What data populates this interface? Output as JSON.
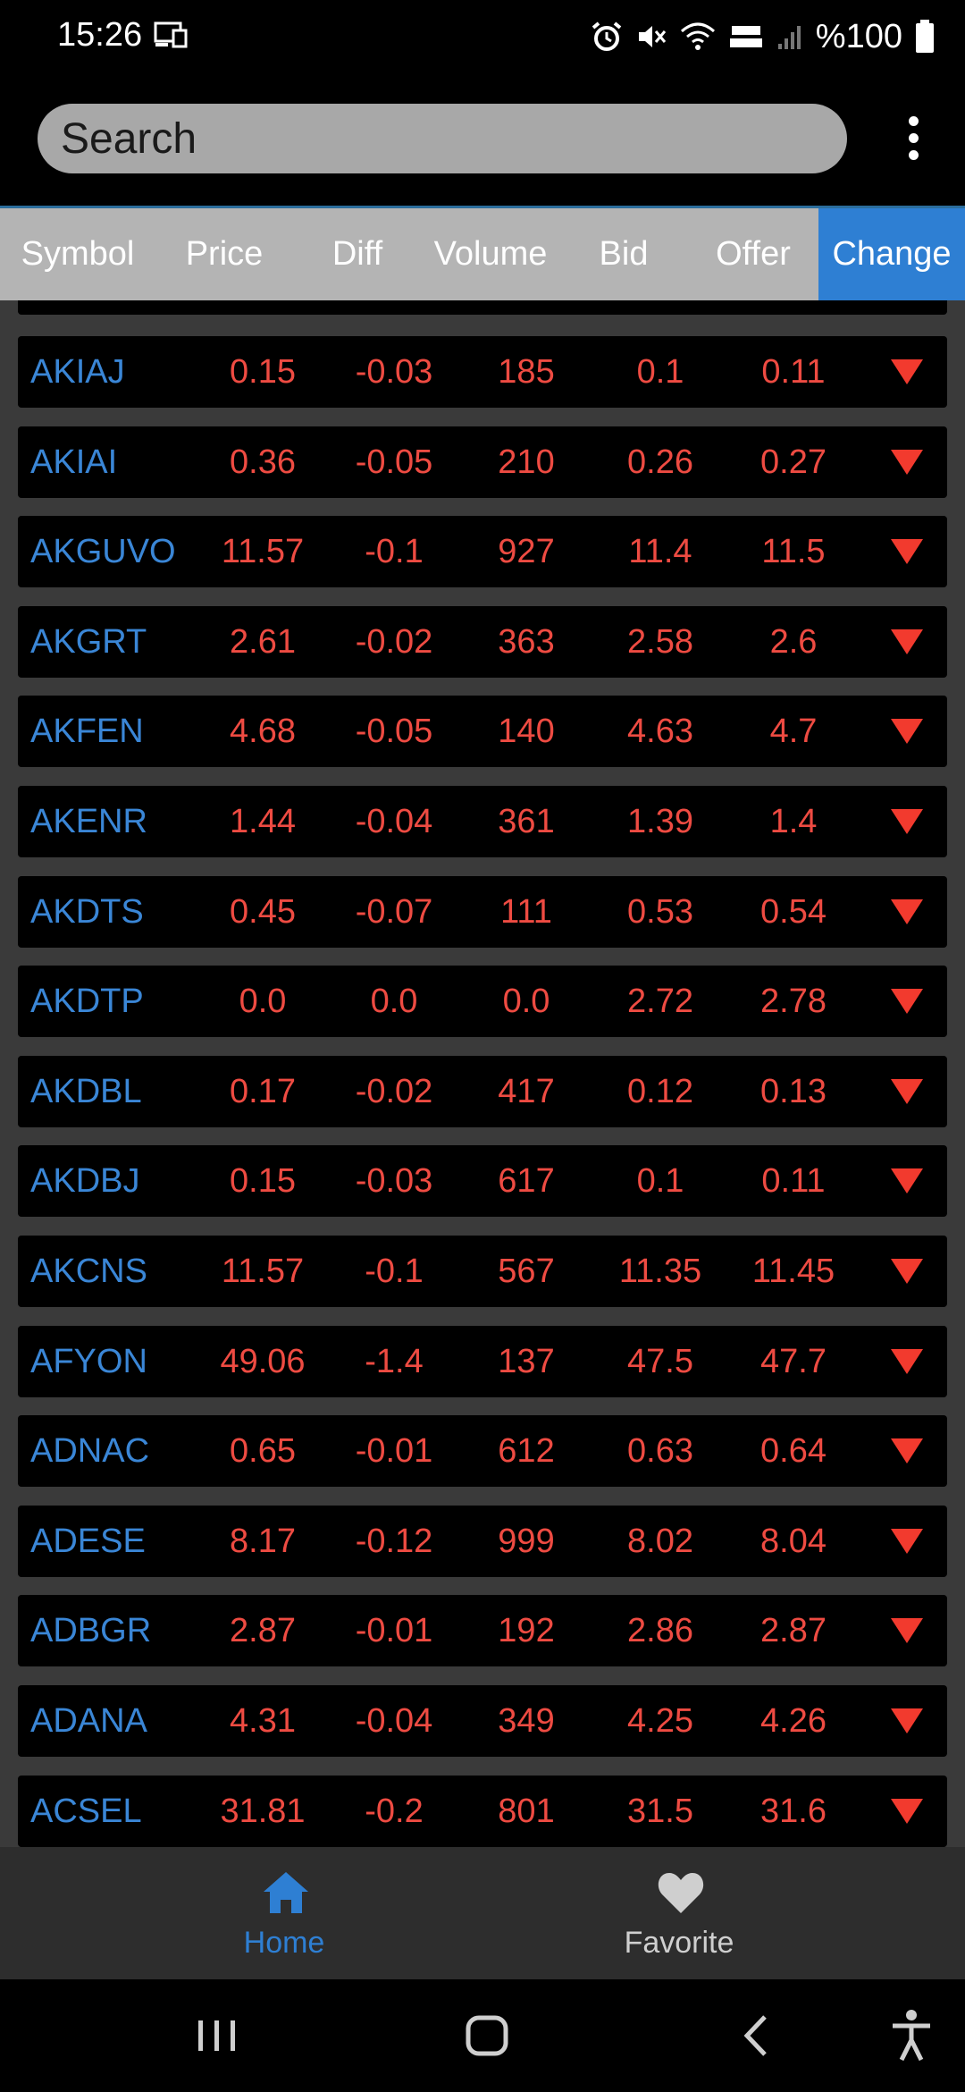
{
  "status_bar": {
    "time": "15:26",
    "battery_text": "%100",
    "icons": [
      "cast-icon",
      "alarm-icon",
      "mute-icon",
      "wifi-icon",
      "volte-icon",
      "signal-icon",
      "battery-icon"
    ]
  },
  "search": {
    "placeholder": "Search"
  },
  "header": {
    "columns": [
      "Symbol",
      "Price",
      "Diff",
      "Volume",
      "Bid",
      "Offer",
      "Change"
    ],
    "active": "Change"
  },
  "rows": [
    {
      "symbol": "AKIAJ",
      "price": "0.15",
      "diff": "-0.03",
      "volume": "185",
      "bid": "0.1",
      "offer": "0.11",
      "change": "down"
    },
    {
      "symbol": "AKIAI",
      "price": "0.36",
      "diff": "-0.05",
      "volume": "210",
      "bid": "0.26",
      "offer": "0.27",
      "change": "down"
    },
    {
      "symbol": "AKGUVO",
      "price": "11.57",
      "diff": "-0.1",
      "volume": "927",
      "bid": "11.4",
      "offer": "11.5",
      "change": "down"
    },
    {
      "symbol": "AKGRT",
      "price": "2.61",
      "diff": "-0.02",
      "volume": "363",
      "bid": "2.58",
      "offer": "2.6",
      "change": "down"
    },
    {
      "symbol": "AKFEN",
      "price": "4.68",
      "diff": "-0.05",
      "volume": "140",
      "bid": "4.63",
      "offer": "4.7",
      "change": "down"
    },
    {
      "symbol": "AKENR",
      "price": "1.44",
      "diff": "-0.04",
      "volume": "361",
      "bid": "1.39",
      "offer": "1.4",
      "change": "down"
    },
    {
      "symbol": "AKDTS",
      "price": "0.45",
      "diff": "-0.07",
      "volume": "111",
      "bid": "0.53",
      "offer": "0.54",
      "change": "down"
    },
    {
      "symbol": "AKDTP",
      "price": "0.0",
      "diff": "0.0",
      "volume": "0.0",
      "bid": "2.72",
      "offer": "2.78",
      "change": "down"
    },
    {
      "symbol": "AKDBL",
      "price": "0.17",
      "diff": "-0.02",
      "volume": "417",
      "bid": "0.12",
      "offer": "0.13",
      "change": "down"
    },
    {
      "symbol": "AKDBJ",
      "price": "0.15",
      "diff": "-0.03",
      "volume": "617",
      "bid": "0.1",
      "offer": "0.11",
      "change": "down"
    },
    {
      "symbol": "AKCNS",
      "price": "11.57",
      "diff": "-0.1",
      "volume": "567",
      "bid": "11.35",
      "offer": "11.45",
      "change": "down"
    },
    {
      "symbol": "AFYON",
      "price": "49.06",
      "diff": "-1.4",
      "volume": "137",
      "bid": "47.5",
      "offer": "47.7",
      "change": "down"
    },
    {
      "symbol": "ADNAC",
      "price": "0.65",
      "diff": "-0.01",
      "volume": "612",
      "bid": "0.63",
      "offer": "0.64",
      "change": "down"
    },
    {
      "symbol": "ADESE",
      "price": "8.17",
      "diff": "-0.12",
      "volume": "999",
      "bid": "8.02",
      "offer": "8.04",
      "change": "down"
    },
    {
      "symbol": "ADBGR",
      "price": "2.87",
      "diff": "-0.01",
      "volume": "192",
      "bid": "2.86",
      "offer": "2.87",
      "change": "down"
    },
    {
      "symbol": "ADANA",
      "price": "4.31",
      "diff": "-0.04",
      "volume": "349",
      "bid": "4.25",
      "offer": "4.26",
      "change": "down"
    },
    {
      "symbol": "ACSEL",
      "price": "31.81",
      "diff": "-0.2",
      "volume": "801",
      "bid": "31.5",
      "offer": "31.6",
      "change": "down"
    }
  ],
  "colors": {
    "symbol": "#3a86d6",
    "value_down": "#ee4b42",
    "arrow_down": "#f23a2e",
    "accent": "#2e7fd3",
    "header_bg": "#b4b4b4"
  },
  "bottom_nav": {
    "home_label": "Home",
    "favorite_label": "Favorite",
    "selected": "Home"
  }
}
